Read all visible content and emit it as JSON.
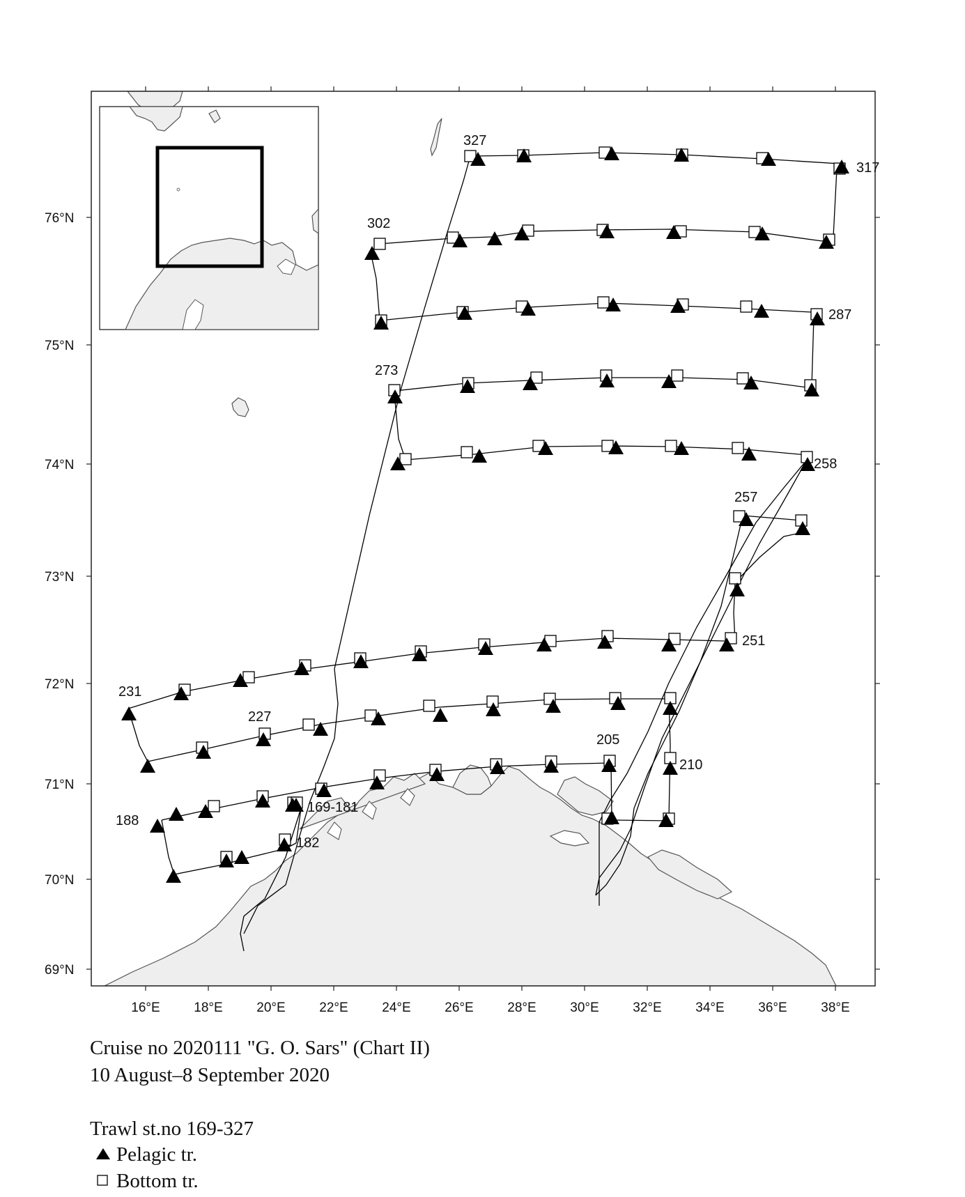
{
  "map": {
    "lat_labels": [
      "76°N",
      "75°N",
      "74°N",
      "73°N",
      "72°N",
      "71°N",
      "70°N",
      "69°N"
    ],
    "lon_labels": [
      "16°E",
      "18°E",
      "20°E",
      "22°E",
      "24°E",
      "26°E",
      "28°E",
      "30°E",
      "32°E",
      "34°E",
      "36°E",
      "38°E"
    ],
    "station_labels": [
      "327",
      "317",
      "302",
      "287",
      "273",
      "258",
      "257",
      "251",
      "231",
      "227",
      "205",
      "210",
      "169-181",
      "188",
      "182"
    ],
    "land_color": "#eeeeee",
    "coast_color": "#555555",
    "track_color": "#000000"
  },
  "caption": {
    "line1": "Cruise no 2020111  \"G. O. Sars\" (Chart II)",
    "line2": "10 August–8 September 2020"
  },
  "legend": {
    "title": "Trawl st.no 169-327",
    "pelagic_label": "Pelagic tr.",
    "bottom_label": "Bottom tr."
  }
}
